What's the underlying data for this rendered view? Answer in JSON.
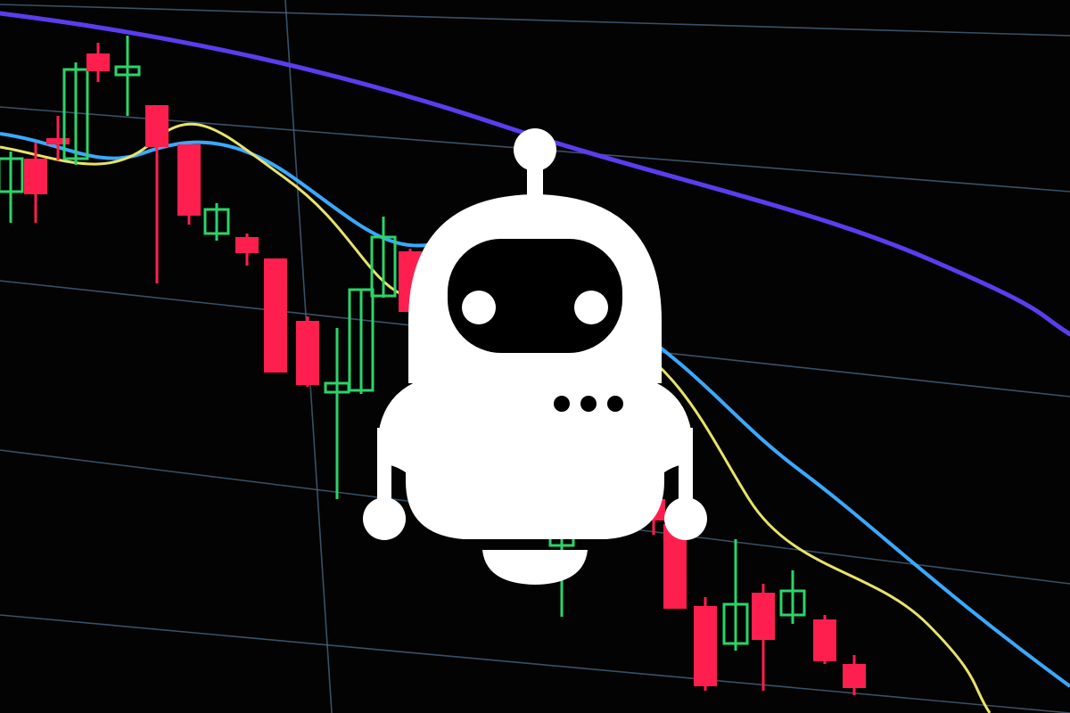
{
  "scene": {
    "background": "#030303",
    "grid_color": "#4a6b86",
    "bull_color": "#2bd46a",
    "bear_color": "#ff1f4f",
    "ma_long_color": "#5b3cf0",
    "ma_mid_color": "#3aa9ff",
    "ma_short_color": "#e8e36a"
  },
  "robot": {
    "icon": "robot-icon",
    "body_color": "#ffffff",
    "visor_color": "#000000"
  }
}
